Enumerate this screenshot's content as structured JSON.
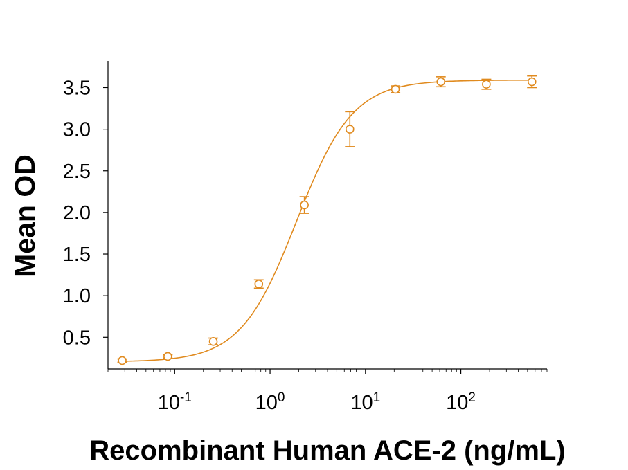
{
  "colors": {
    "series": "#e08a1e",
    "axis": "#000000",
    "background": "#ffffff"
  },
  "chart_data": {
    "type": "scatter",
    "xscale": "log",
    "xlabel": "Recombinant Human ACE-2 (ng/mL)",
    "ylabel": "Mean OD",
    "xlim": [
      0.02,
      800
    ],
    "ylim": [
      0.12,
      3.82
    ],
    "yticks": [
      0.5,
      1.0,
      1.5,
      2.0,
      2.5,
      3.0,
      3.5
    ],
    "ytick_labels": [
      "0.5",
      "1.0",
      "1.5",
      "2.0",
      "2.5",
      "3.0",
      "3.5"
    ],
    "xticks": [
      0.1,
      1,
      10,
      100
    ],
    "xtick_labels": [
      {
        "base": "10",
        "exp": "-1"
      },
      {
        "base": "10",
        "exp": "0"
      },
      {
        "base": "10",
        "exp": "1"
      },
      {
        "base": "10",
        "exp": "2"
      }
    ],
    "grid": false,
    "legend": "none",
    "series": [
      {
        "x": [
          0.0282,
          0.0847,
          0.254,
          0.762,
          2.29,
          6.86,
          20.6,
          61.7,
          185,
          556
        ],
        "y": [
          0.22,
          0.27,
          0.45,
          1.14,
          2.09,
          3.0,
          3.48,
          3.57,
          3.54,
          3.57
        ],
        "err": [
          0.02,
          0.02,
          0.04,
          0.05,
          0.1,
          0.21,
          0.04,
          0.06,
          0.06,
          0.07
        ]
      }
    ],
    "fit": {
      "model": "4PL",
      "bottom": 0.205,
      "top": 3.59,
      "ec50": 1.9,
      "hill": 1.48
    }
  }
}
